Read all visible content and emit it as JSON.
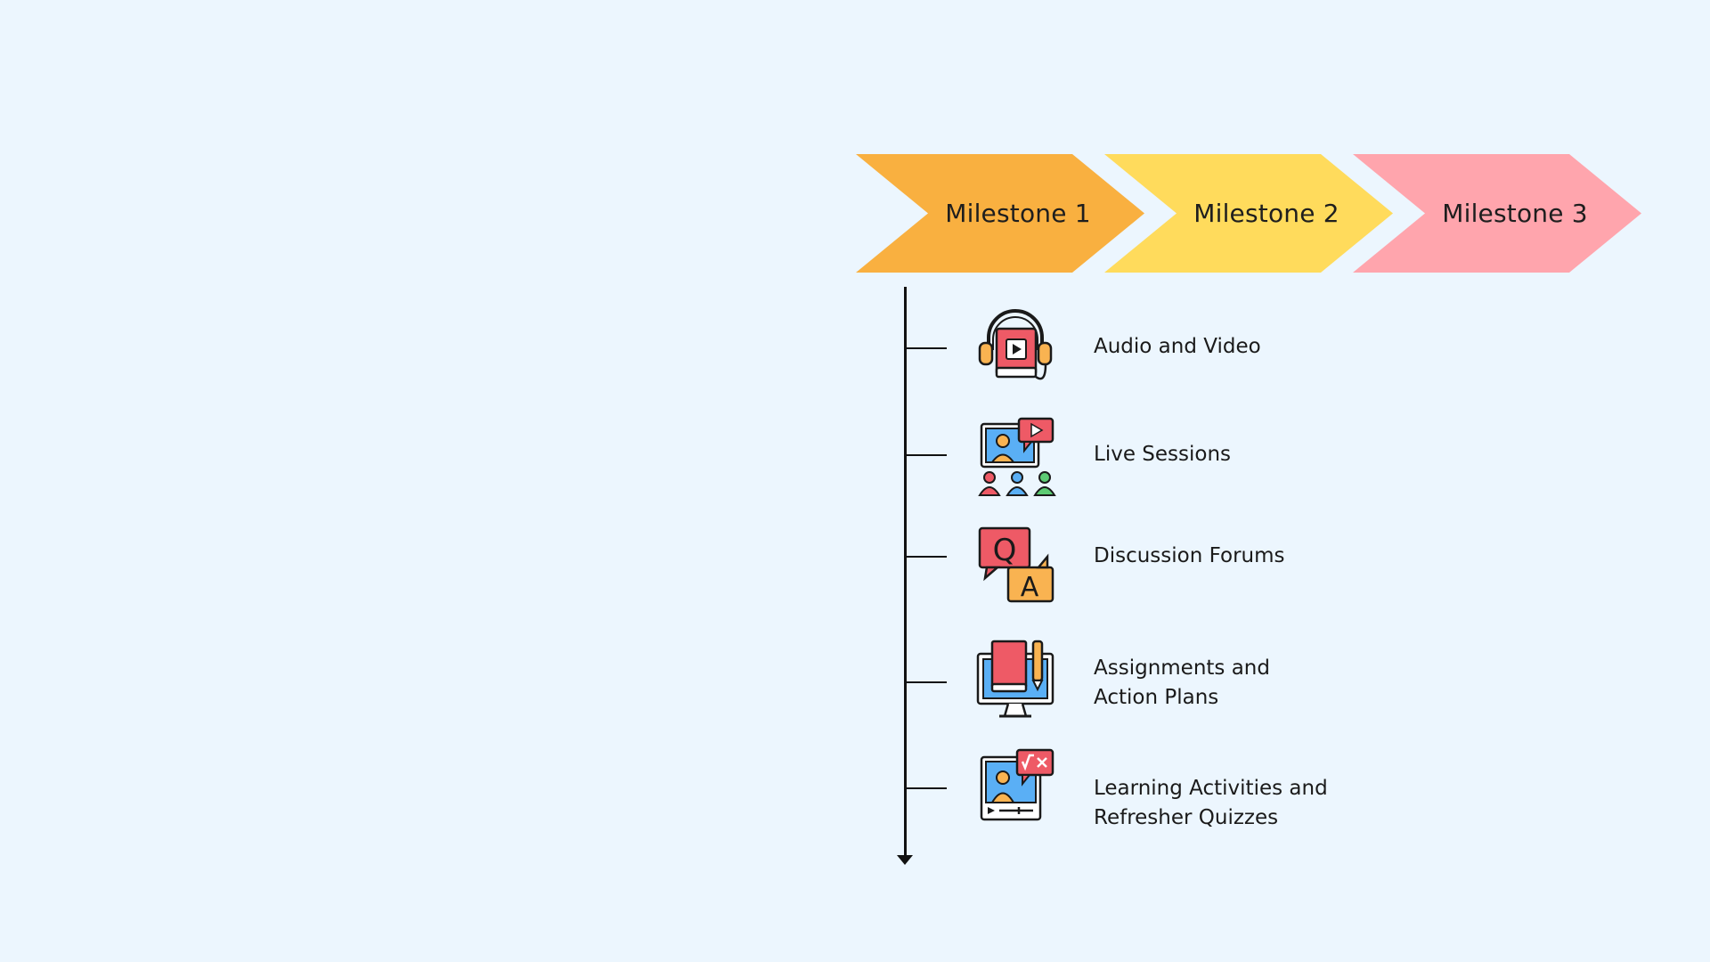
{
  "colors": {
    "background": "#ECF6FE",
    "milestone_1": "#F9B040",
    "milestone_2": "#FFDB5C",
    "milestone_3": "#FFA5AD",
    "icon_red": "#EE5A66",
    "icon_orange": "#F9B351",
    "icon_blue": "#5AAFF5",
    "icon_green": "#5DCB73"
  },
  "milestones": [
    {
      "label": "Milestone 1"
    },
    {
      "label": "Milestone 2"
    },
    {
      "label": "Milestone 3"
    }
  ],
  "items": [
    {
      "icon": "headphones-video-book-icon",
      "lines": [
        "Audio and Video"
      ]
    },
    {
      "icon": "live-session-icon",
      "lines": [
        "Live Sessions"
      ]
    },
    {
      "icon": "qa-chat-icon",
      "lines": [
        "Discussion Forums"
      ]
    },
    {
      "icon": "book-monitor-pencil-icon",
      "lines": [
        "Assignments and",
        "Action Plans"
      ]
    },
    {
      "icon": "video-lesson-math-icon",
      "lines": [
        "Learning Activities and",
        "Refresher Quizzes"
      ]
    }
  ]
}
